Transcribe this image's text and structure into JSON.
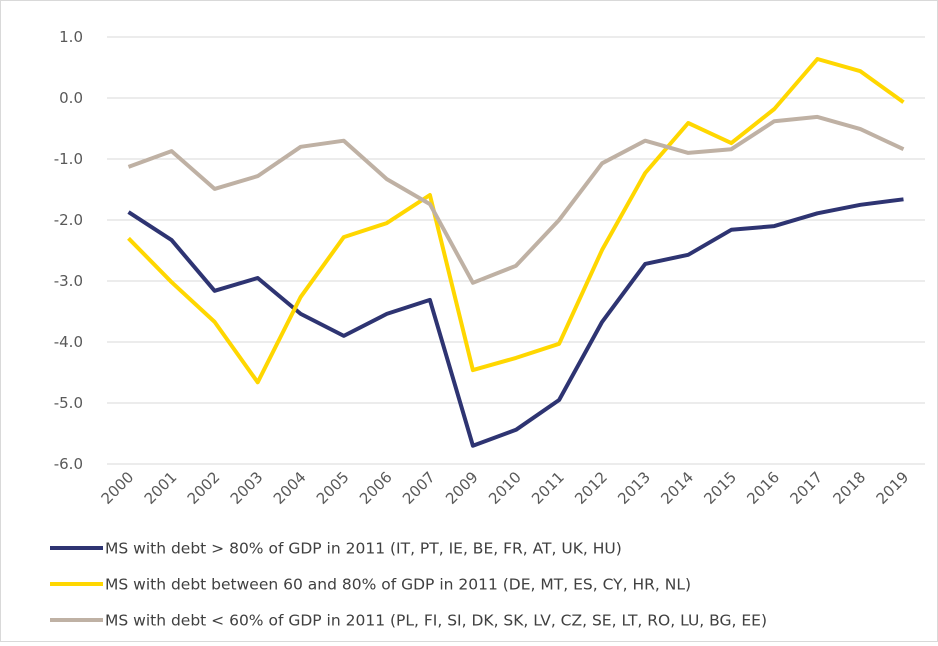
{
  "chart_data": {
    "type": "line",
    "categories": [
      "2000",
      "2001",
      "2002",
      "2003",
      "2004",
      "2005",
      "2006",
      "2007",
      "2009",
      "2010",
      "2011",
      "2012",
      "2013",
      "2014",
      "2015",
      "2016",
      "2017",
      "2018",
      "2019"
    ],
    "series": [
      {
        "name": "MS with debt > 80% of GDP in 2011 (IT, PT, IE, BE, FR, AT, UK, HU)",
        "color": "#2e3472",
        "values": [
          -1.87,
          -2.33,
          -3.16,
          -2.95,
          -3.54,
          -3.9,
          -3.54,
          -3.31,
          -5.7,
          -5.44,
          -4.95,
          -3.67,
          -2.72,
          -2.57,
          -2.16,
          -2.1,
          -1.89,
          -1.75,
          -1.66
        ]
      },
      {
        "name": "MS with debt between 60 and 80% of GDP in 2011 (DE, MT, ES, CY, HR, NL)",
        "color": "#ffd700",
        "values": [
          -2.3,
          -3.02,
          -3.67,
          -4.66,
          -3.26,
          -2.28,
          -2.05,
          -1.59,
          -4.46,
          -4.26,
          -4.03,
          -2.49,
          -1.23,
          -0.41,
          -0.74,
          -0.18,
          0.64,
          0.44,
          -0.07
        ]
      },
      {
        "name": "MS with debt < 60% of GDP in 2011 (PL, FI, SI, DK, SK, LV, CZ, SE, LT, RO, LU, BG, EE)",
        "color": "#bfb1a4",
        "values": [
          -1.13,
          -0.87,
          -1.49,
          -1.28,
          -0.8,
          -0.7,
          -1.33,
          -1.74,
          -3.03,
          -2.75,
          -2.0,
          -1.07,
          -0.7,
          -0.9,
          -0.84,
          -0.38,
          -0.31,
          -0.51,
          -0.84
        ]
      }
    ],
    "ylim": [
      -6,
      1
    ],
    "yticks": [
      {
        "value": 1,
        "label": "1.0"
      },
      {
        "value": 0,
        "label": "0.0"
      },
      {
        "value": -1,
        "label": "-1.0"
      },
      {
        "value": -2,
        "label": "-2.0"
      },
      {
        "value": -3,
        "label": "-3.0"
      },
      {
        "value": -4,
        "label": "-4.0"
      },
      {
        "value": -5,
        "label": "-5.0"
      },
      {
        "value": -6,
        "label": "-6.0"
      }
    ],
    "grid": true,
    "legend": "bottom"
  }
}
